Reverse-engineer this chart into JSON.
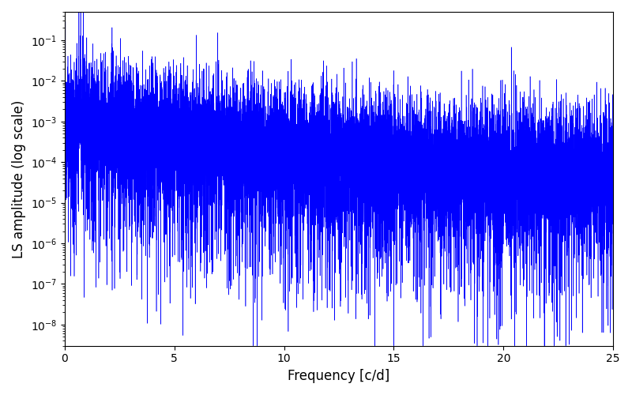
{
  "xlabel": "Frequency [c/d]",
  "ylabel": "LS amplitude (log scale)",
  "xlim": [
    0,
    25
  ],
  "ylim_log": [
    3e-09,
    0.5
  ],
  "line_color": "#0000ff",
  "background_color": "#ffffff",
  "xlabel_fontsize": 12,
  "ylabel_fontsize": 12,
  "tick_fontsize": 10,
  "figsize": [
    8.0,
    5.0
  ],
  "dpi": 100,
  "n_points": 15000,
  "freq_max": 25.0,
  "seed": 12345
}
